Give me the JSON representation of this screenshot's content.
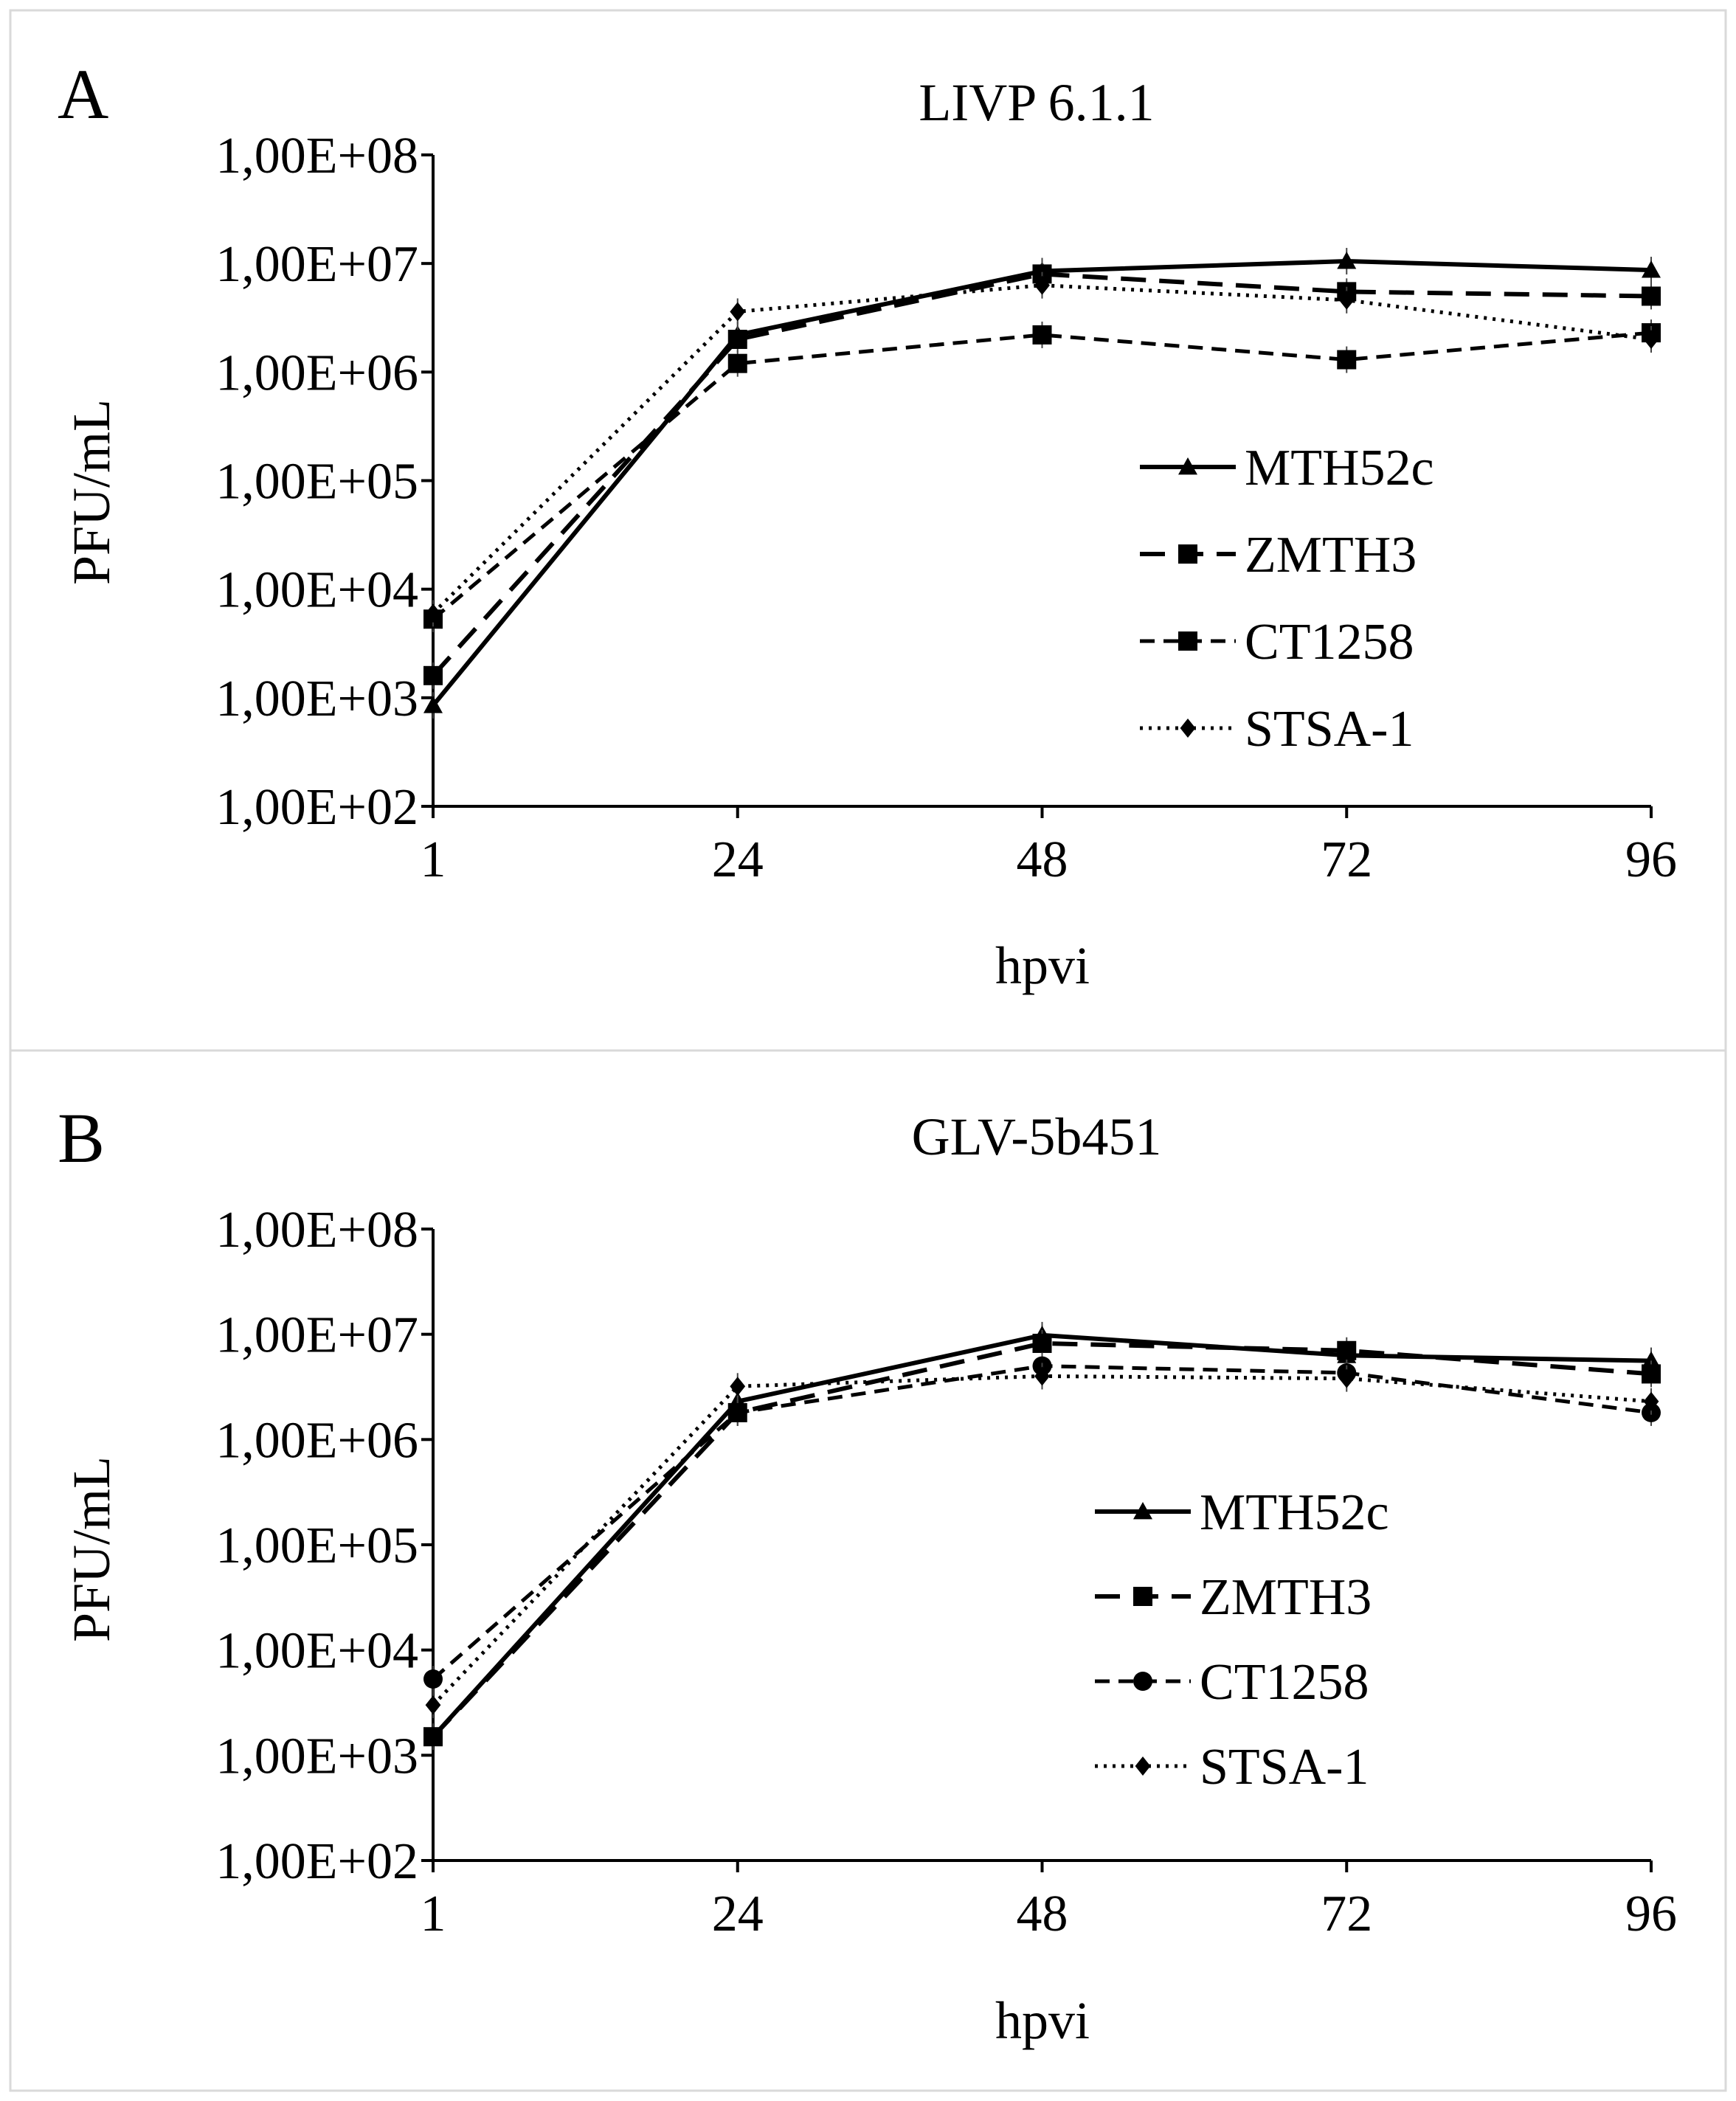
{
  "chart_data": [
    {
      "panel_label": "A",
      "type": "line",
      "title": "LIVP 6.1.1",
      "xlabel": "hpvi",
      "ylabel": "PFU/mL",
      "y_scale": "log",
      "ylim": [
        100,
        100000000
      ],
      "categories": [
        "1",
        "24",
        "48",
        "72",
        "96"
      ],
      "y_tick_labels": [
        "1,00E+08",
        "1,00E+07",
        "1,00E+06",
        "1,00E+05",
        "1,00E+04",
        "1,00E+03",
        "1,00E+02"
      ],
      "legend_position": "center-right",
      "series": [
        {
          "name": "MTH52c",
          "style": "solid",
          "marker": "triangle",
          "values": [
            850,
            2200000,
            8500000,
            10500000,
            8700000
          ]
        },
        {
          "name": "ZMTH3",
          "style": "long-dash",
          "marker": "square",
          "values": [
            1600,
            2000000,
            8000000,
            5500000,
            5000000
          ]
        },
        {
          "name": "CT1258",
          "style": "short-dash",
          "marker": "square",
          "values": [
            5300,
            1200000,
            2200000,
            1300000,
            2300000
          ]
        },
        {
          "name": "STSA-1",
          "style": "dotted",
          "marker": "diamond",
          "values": [
            6000,
            3600000,
            6300000,
            4600000,
            2000000
          ]
        }
      ]
    },
    {
      "panel_label": "B",
      "type": "line",
      "title": "GLV-5b451",
      "xlabel": "hpvi",
      "ylabel": "PFU/mL",
      "y_scale": "log",
      "ylim": [
        100,
        100000000
      ],
      "categories": [
        "1",
        "24",
        "48",
        "72",
        "96"
      ],
      "y_tick_labels": [
        "1,00E+08",
        "1,00E+07",
        "1,00E+06",
        "1,00E+05",
        "1,00E+04",
        "1,00E+03",
        "1,00E+02"
      ],
      "legend_position": "center-right",
      "series": [
        {
          "name": "MTH52c",
          "style": "solid",
          "marker": "triangle",
          "values": [
            1500,
            2300000,
            9800000,
            6300000,
            5600000
          ]
        },
        {
          "name": "ZMTH3",
          "style": "long-dash",
          "marker": "square",
          "values": [
            1500,
            1800000,
            8200000,
            7000000,
            4200000
          ]
        },
        {
          "name": "CT1258",
          "style": "short-dash",
          "marker": "circle",
          "values": [
            5300,
            1800000,
            5000000,
            4300000,
            1800000
          ]
        },
        {
          "name": "STSA-1",
          "style": "dotted",
          "marker": "diamond",
          "values": [
            3000,
            3200000,
            4000000,
            3800000,
            2300000
          ]
        }
      ]
    }
  ]
}
